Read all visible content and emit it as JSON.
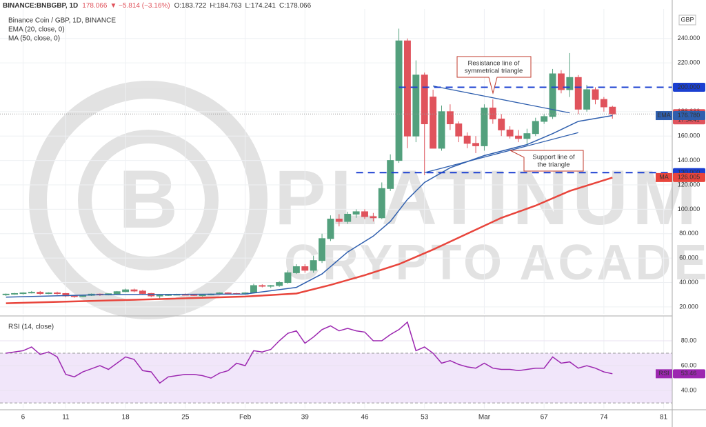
{
  "chart_data": [
    {
      "type": "candlestick",
      "header": [
        "BINANCE:BNBGBP, 1D",
        "178.066",
        "▼ −5.814 (−3.16%)",
        "O:183.722",
        "H:184.763",
        "L:174.241",
        "C:178.066"
      ],
      "title": "Binance Coin / GBP, 1D, BINANCE",
      "currency": "GBP",
      "watermark": [
        "PLATINUM",
        "CRYPTO ACADEMY"
      ],
      "annotations": [
        [
          "Resistance line of",
          "symmetrical triangle"
        ],
        [
          "Support line of",
          "the triangle"
        ]
      ],
      "up_color": "#53a07d",
      "down_color": "#e0535c",
      "xlim": [
        3.3,
        82
      ],
      "xticks": [
        6,
        11,
        18,
        25,
        {
          "value": 32,
          "label": "Feb"
        },
        39,
        46,
        53,
        {
          "value": 60,
          "label": "Mar"
        },
        67,
        74,
        81
      ],
      "ylim": [
        14.3,
        263
      ],
      "yticks": [
        {
          "value": 20,
          "label": "20.000"
        },
        {
          "value": 40,
          "label": "40.000"
        },
        {
          "value": 60,
          "label": "60.000"
        },
        {
          "value": 80,
          "label": "80.000"
        },
        {
          "value": 100,
          "label": "100.000"
        },
        {
          "value": 120,
          "label": "120.000"
        },
        {
          "value": 140,
          "label": "140.000"
        },
        {
          "value": 160,
          "label": "160.000"
        },
        {
          "value": 180,
          "label": "180.000"
        },
        {
          "value": 220,
          "label": "220.000"
        },
        {
          "value": 240,
          "label": "240.000"
        }
      ],
      "grid": true,
      "x": [
        4,
        5,
        6,
        7,
        8,
        9,
        10,
        11,
        12,
        13,
        14,
        15,
        16,
        17,
        18,
        19,
        20,
        21,
        22,
        23,
        24,
        25,
        26,
        27,
        28,
        29,
        30,
        31,
        32,
        33,
        34,
        35,
        36,
        37,
        38,
        39,
        40,
        41,
        42,
        43,
        44,
        45,
        46,
        47,
        48,
        49,
        50,
        51,
        52,
        53,
        54,
        55,
        56,
        57,
        58,
        59,
        60,
        61,
        62,
        63,
        64,
        65,
        66,
        67,
        68,
        69,
        70,
        71,
        72,
        73,
        74,
        75
      ],
      "open": [
        30,
        30.5,
        31,
        31.5,
        32,
        31,
        31.5,
        31,
        29,
        28.5,
        29.5,
        30.5,
        29.8,
        30.8,
        32.5,
        34,
        33,
        31,
        29,
        29.5,
        30,
        30.2,
        30,
        29.5,
        29.8,
        30.5,
        31.5,
        31,
        30.5,
        31.5,
        37.5,
        37,
        37.5,
        40,
        48,
        53,
        50,
        58,
        76,
        92,
        90,
        96,
        98,
        94,
        93,
        117,
        140,
        238,
        160,
        210,
        192,
        150,
        180,
        170,
        160,
        154,
        152,
        183,
        174,
        165,
        160,
        158,
        162,
        172,
        176,
        211,
        198,
        208,
        182,
        198,
        190,
        183.722
      ],
      "high": [
        31,
        31.5,
        32,
        33,
        33,
        32,
        32.5,
        31.5,
        30,
        30,
        31,
        31,
        31,
        33,
        35,
        35,
        34,
        31.5,
        30,
        30.5,
        30.8,
        31,
        30.5,
        30,
        31,
        32,
        32,
        31.5,
        32,
        39,
        38.5,
        38,
        41,
        50,
        55,
        55,
        62,
        80,
        95,
        96,
        98,
        100,
        100,
        97,
        122,
        145,
        248,
        240,
        222,
        212,
        198,
        185,
        186,
        172,
        163,
        160,
        186,
        190,
        178,
        168,
        165,
        166,
        175,
        178,
        215,
        214,
        228,
        210,
        202,
        200,
        192,
        184.763
      ],
      "low": [
        29,
        30,
        30,
        31,
        30,
        30.5,
        30,
        28,
        27.5,
        28,
        29,
        29,
        29.5,
        30.5,
        32,
        32,
        30,
        28,
        27,
        29,
        29.5,
        29.5,
        29,
        28.5,
        29.5,
        30,
        30.5,
        30,
        30,
        31,
        36,
        35.5,
        36.5,
        39,
        47,
        48,
        48,
        56,
        74,
        86,
        88,
        93,
        92,
        90,
        92,
        115,
        138,
        150,
        155,
        128,
        150,
        148,
        165,
        155,
        150,
        146,
        148,
        170,
        160,
        158,
        155,
        152,
        160,
        170,
        174,
        195,
        192,
        178,
        180,
        186,
        180,
        174.241
      ],
      "close": [
        30.5,
        31,
        31.5,
        32,
        31,
        31.5,
        31,
        29,
        28.5,
        29.5,
        30.5,
        29.8,
        30.8,
        32.5,
        34,
        33,
        31,
        29,
        29.5,
        30,
        30.2,
        30,
        29.5,
        29.8,
        30.5,
        31.5,
        31,
        30.5,
        31.5,
        37.5,
        37,
        37.5,
        40,
        48,
        53,
        50,
        58,
        76,
        92,
        90,
        96,
        98,
        94,
        93,
        117,
        140,
        238,
        160,
        210,
        170,
        150,
        180,
        170,
        160,
        154,
        152,
        183,
        174,
        165,
        160,
        158,
        162,
        172,
        176,
        211,
        198,
        208,
        182,
        198,
        190,
        183.88,
        178.066
      ],
      "series": [
        {
          "name": "EMA (20, close, 0)",
          "color": "#2f5fae",
          "x": [
            4,
            15,
            32,
            38,
            41,
            44,
            47,
            49,
            51,
            53,
            56,
            60,
            65,
            68,
            71,
            75
          ],
          "values": [
            28,
            30,
            30.5,
            36,
            47,
            65,
            78,
            90,
            108,
            122,
            134,
            144,
            153,
            162,
            172,
            176.78
          ]
        },
        {
          "name": "MA (50, close, 0)",
          "color": "#e8453c",
          "x": [
            4,
            20,
            32,
            38,
            42,
            46,
            50,
            54,
            58,
            62,
            66,
            70,
            75
          ],
          "values": [
            23,
            26,
            28.5,
            31,
            38,
            46,
            55,
            67,
            80,
            93,
            103,
            115,
            126.005
          ]
        }
      ],
      "trendlines": [
        {
          "x": [
            54,
            70
          ],
          "values": [
            201,
            179
          ]
        },
        {
          "x": [
            53,
            71
          ],
          "values": [
            130,
            162.8
          ]
        }
      ],
      "levels": [
        {
          "value": 200,
          "label": "200.000",
          "from": 50
        },
        {
          "value": 130,
          "label": "130.000",
          "from": 45
        }
      ],
      "price": {
        "value": 178.066,
        "label": "178.066",
        "countdown": "17:54:41"
      },
      "markers": [
        {
          "tag": "EMA",
          "value": 176.78,
          "label": "176.780",
          "color": "#2f5fae"
        },
        {
          "tag": "MA",
          "value": 126.005,
          "label": "126.005",
          "color": "#e8453c"
        }
      ]
    },
    {
      "type": "line",
      "title": "RSI (14, close)",
      "xlim": [
        3.3,
        82
      ],
      "ylim": [
        25.6,
        98.9
      ],
      "yticks": [
        {
          "value": 40,
          "label": "40.00"
        },
        {
          "value": 60,
          "label": "60.00"
        },
        {
          "value": 80,
          "label": "80.00"
        }
      ],
      "band": [
        30,
        70
      ],
      "series": [
        {
          "name": "RSI",
          "color": "#9c27b0",
          "x": [
            4,
            6,
            7,
            8,
            9,
            10,
            11,
            12,
            13,
            15,
            16,
            18,
            19,
            20,
            21,
            22,
            23,
            24,
            25,
            26,
            27,
            28,
            29,
            30,
            31,
            32,
            33,
            34,
            35,
            36,
            37,
            38,
            39,
            40,
            41,
            42,
            43,
            44,
            45,
            46,
            47,
            48,
            49,
            50,
            51,
            52,
            53,
            54,
            55,
            56,
            57,
            58,
            59,
            60,
            61,
            62,
            63,
            64,
            65,
            66,
            67,
            68,
            69,
            70,
            71,
            72,
            73,
            74,
            75
          ],
          "values": [
            70,
            72,
            75,
            69,
            71,
            67,
            53,
            51,
            55,
            60,
            57,
            67,
            65,
            56,
            55,
            46,
            51,
            52,
            53,
            53,
            52,
            50,
            54,
            56,
            62,
            60,
            72,
            71,
            73,
            80,
            86,
            88,
            78,
            83,
            89,
            92,
            88,
            90,
            88,
            87,
            80,
            80,
            85,
            89,
            95,
            72,
            75,
            70,
            62,
            64,
            61,
            59,
            58,
            62,
            58,
            57,
            57,
            56,
            57,
            58,
            58,
            67,
            62,
            63,
            58,
            60,
            58,
            55,
            53.46
          ]
        }
      ],
      "markers": [
        {
          "tag": "RSI",
          "value": 53.46,
          "label": "53.46",
          "color": "#9c27b0"
        }
      ]
    }
  ]
}
